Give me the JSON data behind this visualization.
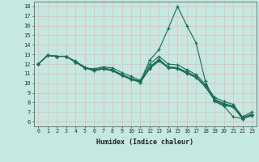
{
  "xlabel": "Humidex (Indice chaleur)",
  "xlim": [
    -0.5,
    23.5
  ],
  "ylim": [
    5.5,
    18.5
  ],
  "xticks": [
    0,
    1,
    2,
    3,
    4,
    5,
    6,
    7,
    8,
    9,
    10,
    11,
    12,
    13,
    14,
    15,
    16,
    17,
    18,
    19,
    20,
    21,
    22,
    23
  ],
  "yticks": [
    6,
    7,
    8,
    9,
    10,
    11,
    12,
    13,
    14,
    15,
    16,
    17,
    18
  ],
  "bg_color": "#c5e8e0",
  "grid_color": "#e8b8b8",
  "line_color": "#1a6b5a",
  "lines": [
    [
      12.0,
      12.9,
      12.8,
      12.8,
      12.2,
      11.6,
      11.5,
      11.7,
      11.6,
      11.1,
      10.7,
      10.3,
      12.0,
      12.8,
      12.0,
      11.9,
      11.4,
      10.9,
      9.9,
      8.5,
      8.1,
      7.8,
      6.5,
      7.0
    ],
    [
      12.0,
      12.9,
      12.8,
      12.8,
      12.2,
      11.6,
      11.4,
      11.6,
      11.4,
      10.9,
      10.5,
      10.2,
      11.7,
      12.5,
      11.7,
      11.6,
      11.2,
      10.7,
      9.7,
      8.3,
      7.9,
      7.6,
      6.4,
      6.8
    ],
    [
      12.0,
      12.9,
      12.8,
      12.8,
      12.2,
      11.6,
      11.3,
      11.5,
      11.3,
      10.8,
      10.4,
      10.1,
      11.5,
      12.3,
      11.6,
      11.5,
      11.0,
      10.6,
      9.6,
      8.2,
      7.7,
      7.5,
      6.3,
      6.7
    ],
    [
      12.0,
      12.9,
      12.8,
      12.8,
      12.2,
      11.6,
      11.3,
      11.5,
      11.3,
      10.8,
      10.4,
      10.1,
      11.6,
      12.4,
      11.7,
      11.6,
      11.1,
      10.7,
      9.7,
      8.3,
      7.8,
      7.6,
      6.3,
      6.7
    ],
    [
      12.0,
      12.9,
      12.8,
      12.8,
      12.3,
      11.7,
      11.3,
      11.5,
      11.3,
      10.8,
      10.4,
      10.2,
      12.4,
      13.5,
      15.7,
      18.0,
      16.0,
      14.2,
      10.2,
      8.1,
      7.6,
      6.5,
      6.3,
      6.6
    ]
  ]
}
